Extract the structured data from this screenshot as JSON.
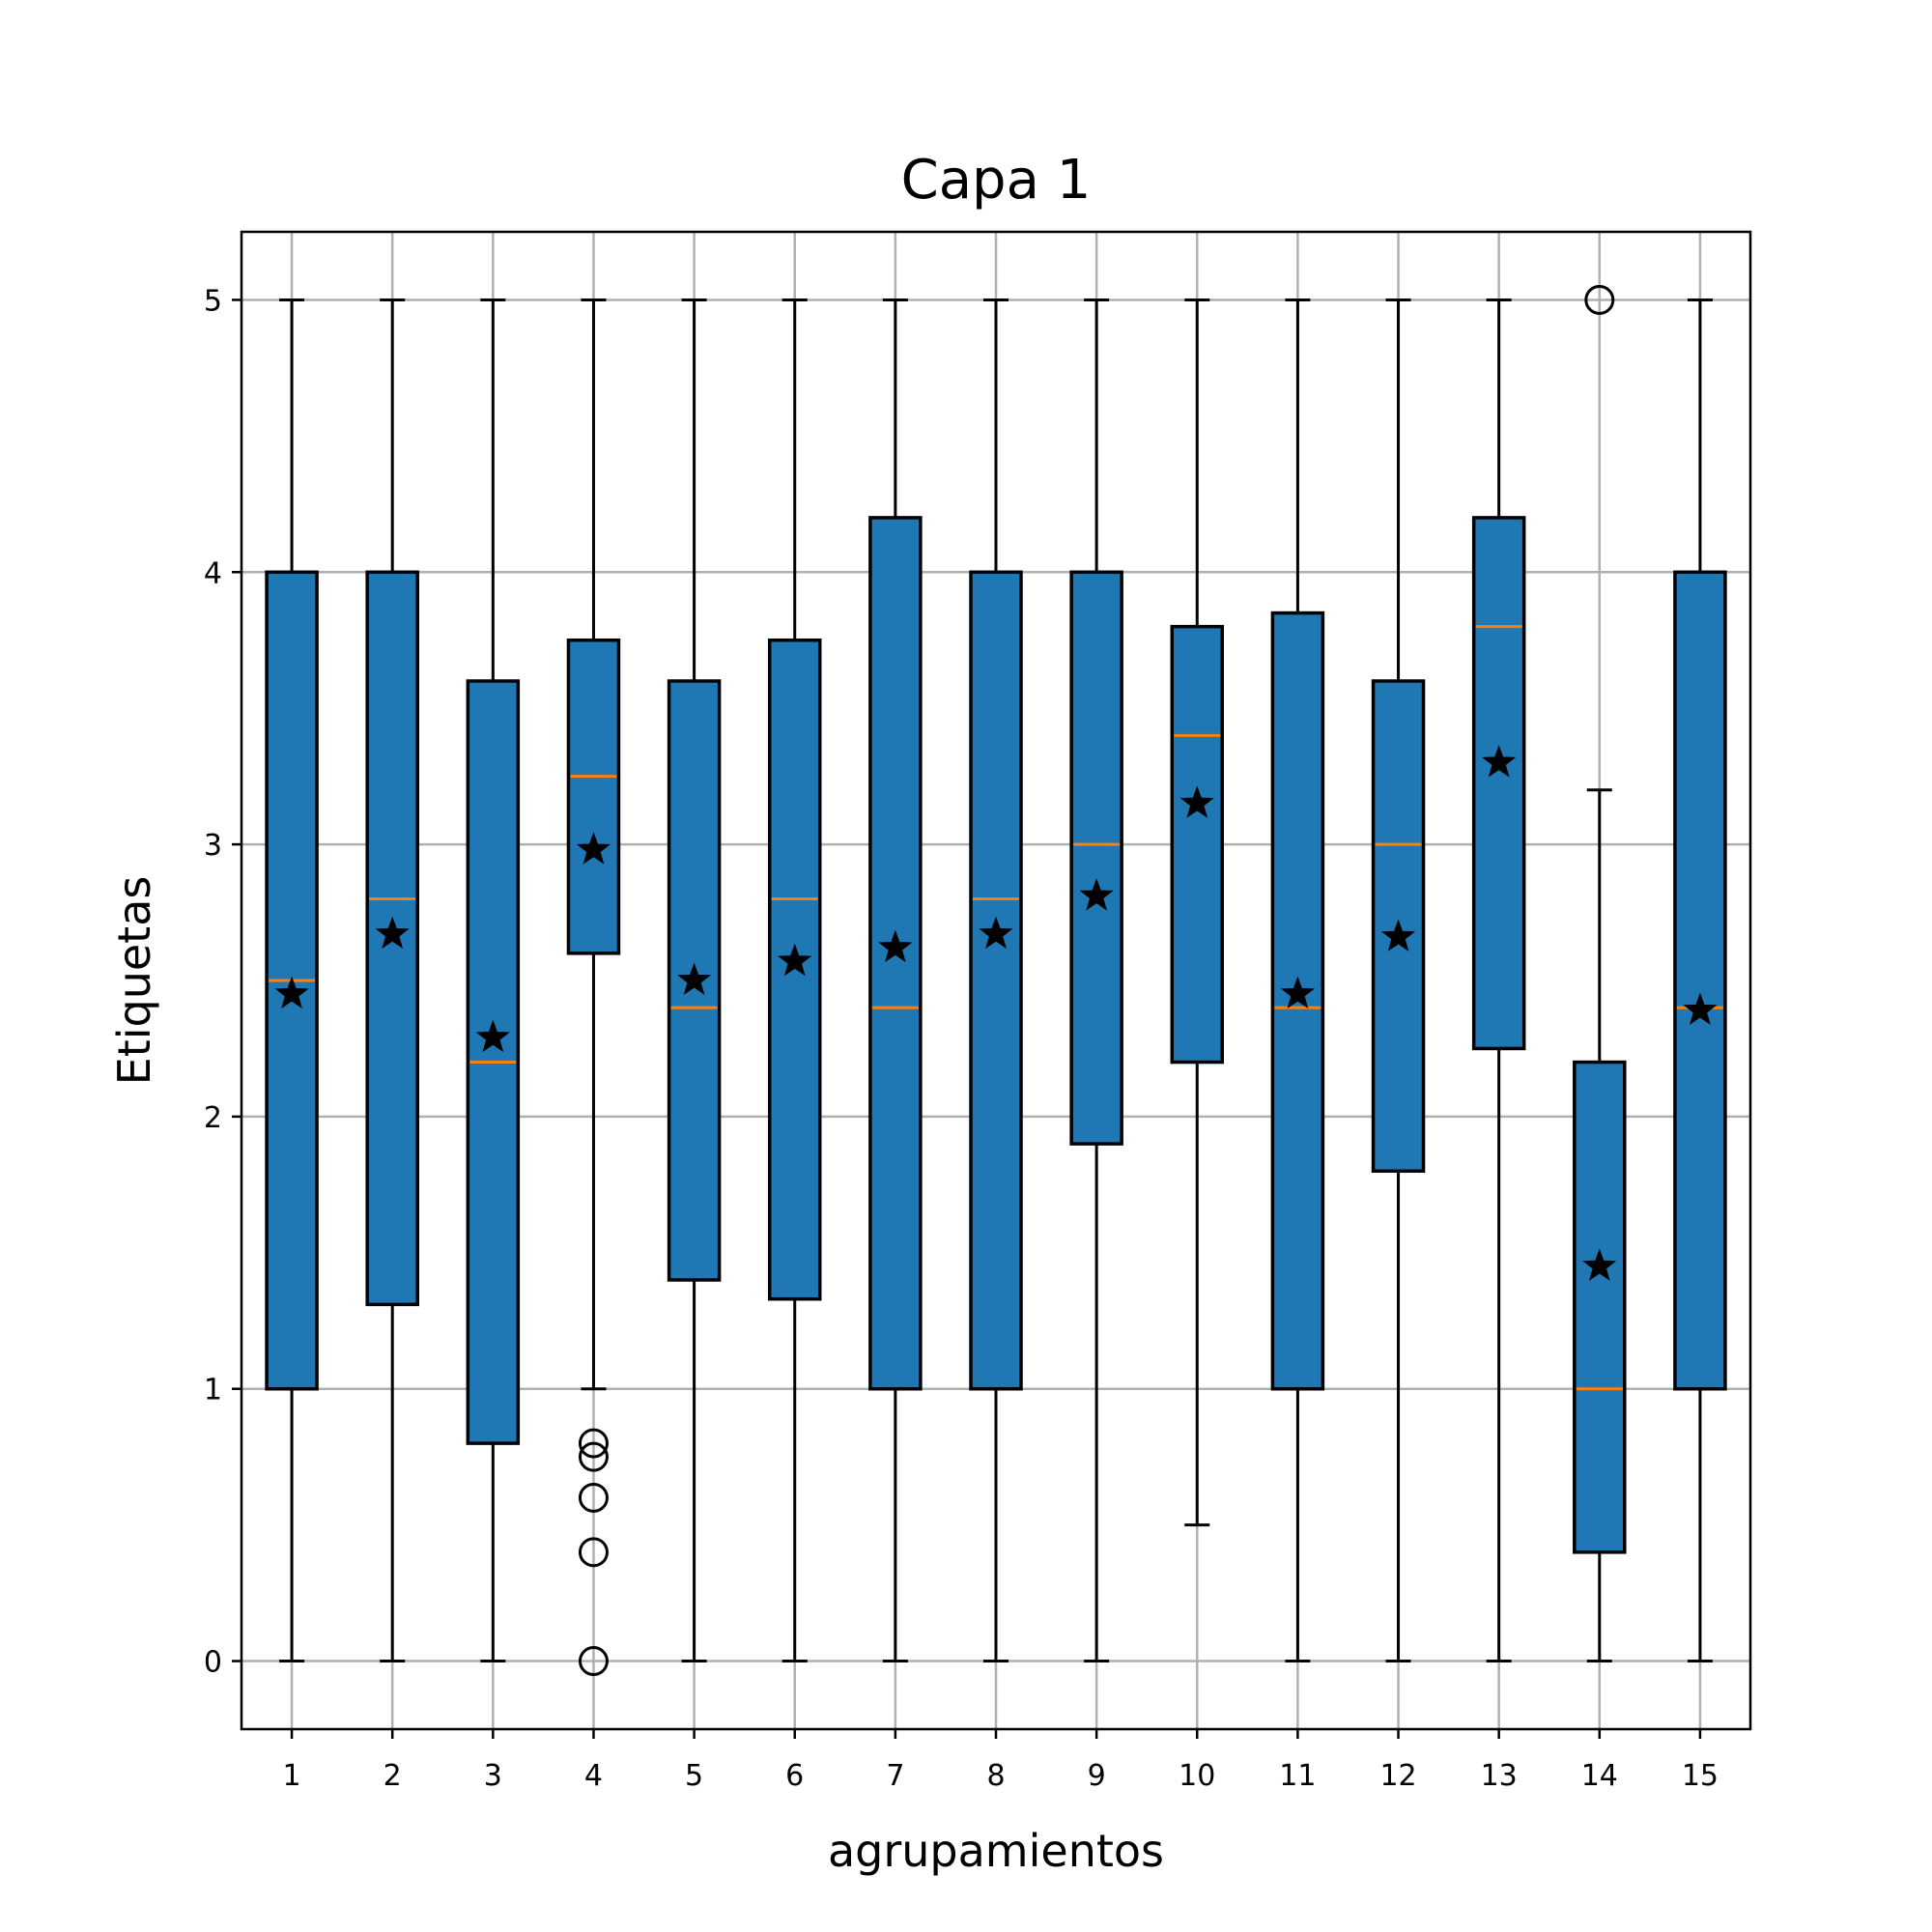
{
  "chart_data": {
    "type": "boxplot",
    "title": "Capa 1",
    "xlabel": "agrupamientos",
    "ylabel": "Etiquetas",
    "ylim": [
      -0.25,
      5.25
    ],
    "yticks": [
      0,
      1,
      2,
      3,
      4,
      5
    ],
    "grid": true,
    "colors": {
      "box_fill": "#1f77b4",
      "median": "#ff7f0e",
      "outline": "#000000",
      "grid": "#b0b0b0"
    },
    "categories": [
      "1",
      "2",
      "3",
      "4",
      "5",
      "6",
      "7",
      "8",
      "9",
      "10",
      "11",
      "12",
      "13",
      "14",
      "15"
    ],
    "boxes": [
      {
        "whislo": 0,
        "q1": 1.0,
        "med": 2.5,
        "q3": 4.0,
        "whishi": 5,
        "mean": 2.45,
        "fliers": []
      },
      {
        "whislo": 0,
        "q1": 1.31,
        "med": 2.8,
        "q3": 4.0,
        "whishi": 5,
        "mean": 2.67,
        "fliers": []
      },
      {
        "whislo": 0,
        "q1": 0.8,
        "med": 2.2,
        "q3": 3.6,
        "whishi": 5,
        "mean": 2.29,
        "fliers": []
      },
      {
        "whislo": 1.0,
        "q1": 2.6,
        "med": 3.25,
        "q3": 3.75,
        "whishi": 5,
        "mean": 2.98,
        "fliers": [
          0.8,
          0.75,
          0.6,
          0.4,
          0
        ]
      },
      {
        "whislo": 0,
        "q1": 1.4,
        "med": 2.4,
        "q3": 3.6,
        "whishi": 5,
        "mean": 2.5,
        "fliers": []
      },
      {
        "whislo": 0,
        "q1": 1.33,
        "med": 2.8,
        "q3": 3.75,
        "whishi": 5,
        "mean": 2.57,
        "fliers": []
      },
      {
        "whislo": 0,
        "q1": 1.0,
        "med": 2.4,
        "q3": 4.2,
        "whishi": 5,
        "mean": 2.62,
        "fliers": []
      },
      {
        "whislo": 0,
        "q1": 1.0,
        "med": 2.8,
        "q3": 4.0,
        "whishi": 5,
        "mean": 2.67,
        "fliers": []
      },
      {
        "whislo": 0,
        "q1": 1.9,
        "med": 3.0,
        "q3": 4.0,
        "whishi": 5,
        "mean": 2.81,
        "fliers": []
      },
      {
        "whislo": 0.5,
        "q1": 2.2,
        "med": 3.4,
        "q3": 3.8,
        "whishi": 5,
        "mean": 3.15,
        "fliers": []
      },
      {
        "whislo": 0,
        "q1": 1.0,
        "med": 2.4,
        "q3": 3.85,
        "whishi": 5,
        "mean": 2.45,
        "fliers": []
      },
      {
        "whislo": 0,
        "q1": 1.8,
        "med": 3.0,
        "q3": 3.6,
        "whishi": 5,
        "mean": 2.66,
        "fliers": []
      },
      {
        "whislo": 0,
        "q1": 2.25,
        "med": 3.8,
        "q3": 4.2,
        "whishi": 5,
        "mean": 3.3,
        "fliers": []
      },
      {
        "whislo": 0,
        "q1": 0.4,
        "med": 1.0,
        "q3": 2.2,
        "whishi": 3.2,
        "mean": 1.45,
        "fliers": [
          5
        ]
      },
      {
        "whislo": 0,
        "q1": 1.0,
        "med": 2.4,
        "q3": 4.0,
        "whishi": 5,
        "mean": 2.39,
        "fliers": []
      }
    ]
  }
}
